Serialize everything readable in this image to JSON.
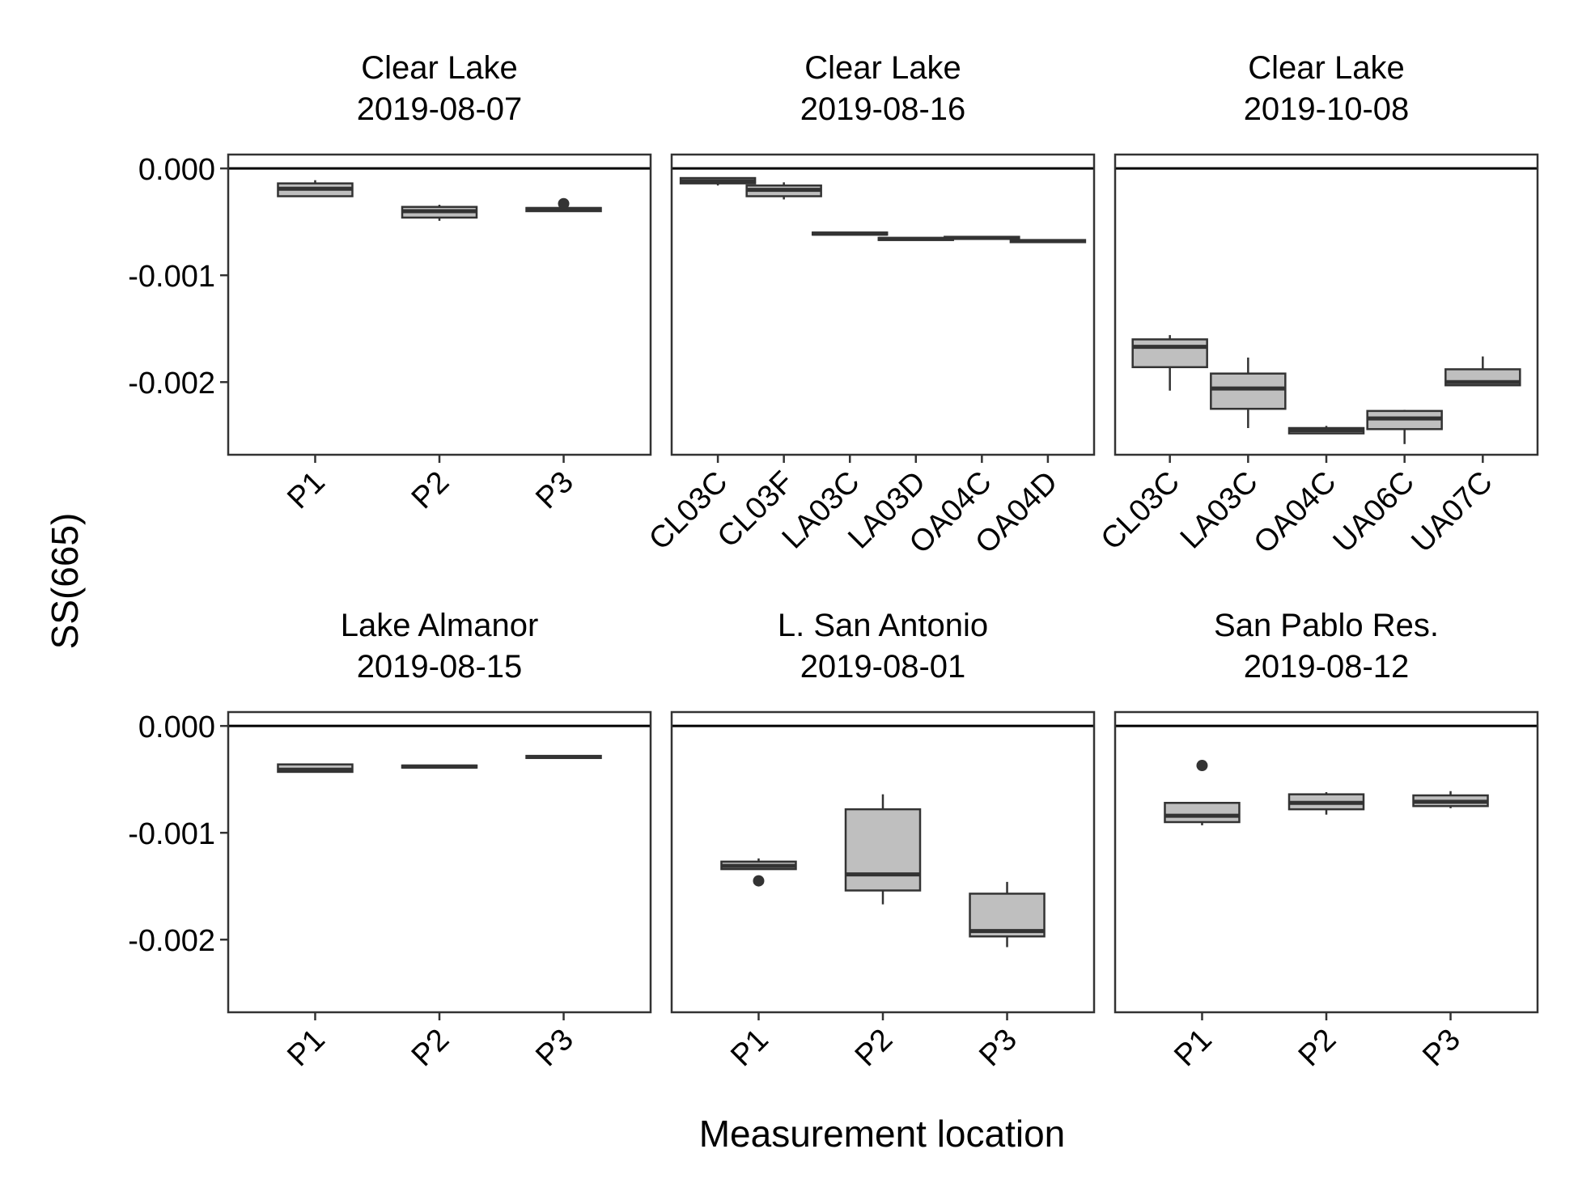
{
  "chart_data": {
    "type": "boxplot",
    "ylabel": "SS(665)",
    "xlabel": "Measurement location",
    "ylim": [
      -0.00268,
      0.00013
    ],
    "yticks": [
      0.0,
      -0.001,
      -0.002
    ],
    "ytick_labels": [
      "0.000",
      "-0.001",
      "-0.002"
    ],
    "reference_line_y": 0.0,
    "box_fill": "#bfbfbf",
    "box_stroke": "#333333",
    "grid": false,
    "panels": [
      {
        "title_line1": "Clear Lake",
        "title_line2": "2019-08-07",
        "categories": [
          "P1",
          "P2",
          "P3"
        ],
        "boxes": [
          {
            "q1": -0.00026,
            "median": -0.00019,
            "q3": -0.00014,
            "whisker_low": -0.00026,
            "whisker_high": -0.00011,
            "outliers": []
          },
          {
            "q1": -0.00046,
            "median": -0.0004,
            "q3": -0.00036,
            "whisker_low": -0.00049,
            "whisker_high": -0.00034,
            "outliers": []
          },
          {
            "q1": -0.0004,
            "median": -0.00038,
            "q3": -0.00037,
            "whisker_low": -0.0004,
            "whisker_high": -0.00037,
            "outliers": [
              -0.00033
            ]
          }
        ]
      },
      {
        "title_line1": "Clear Lake",
        "title_line2": "2019-08-16",
        "categories": [
          "CL03C",
          "CL03F",
          "LA03C",
          "LA03D",
          "OA04C",
          "OA04D"
        ],
        "boxes": [
          {
            "q1": -0.00014,
            "median": -0.00012,
            "q3": -9e-05,
            "whisker_low": -0.00016,
            "whisker_high": -9e-05,
            "outliers": []
          },
          {
            "q1": -0.00026,
            "median": -0.0002,
            "q3": -0.00016,
            "whisker_low": -0.00029,
            "whisker_high": -0.00013,
            "outliers": []
          },
          {
            "q1": -0.00062,
            "median": -0.00061,
            "q3": -0.0006,
            "whisker_low": -0.00062,
            "whisker_high": -0.0006,
            "outliers": []
          },
          {
            "q1": -0.00067,
            "median": -0.00066,
            "q3": -0.00065,
            "whisker_low": -0.00067,
            "whisker_high": -0.00065,
            "outliers": []
          },
          {
            "q1": -0.00066,
            "median": -0.00065,
            "q3": -0.00064,
            "whisker_low": -0.00066,
            "whisker_high": -0.00064,
            "outliers": []
          },
          {
            "q1": -0.00069,
            "median": -0.00068,
            "q3": -0.00067,
            "whisker_low": -0.00069,
            "whisker_high": -0.00067,
            "outliers": []
          }
        ]
      },
      {
        "title_line1": "Clear Lake",
        "title_line2": "2019-10-08",
        "categories": [
          "CL03C",
          "LA03C",
          "OA04C",
          "UA06C",
          "UA07C"
        ],
        "boxes": [
          {
            "q1": -0.00186,
            "median": -0.00167,
            "q3": -0.0016,
            "whisker_low": -0.00208,
            "whisker_high": -0.00156,
            "outliers": []
          },
          {
            "q1": -0.00225,
            "median": -0.00206,
            "q3": -0.00192,
            "whisker_low": -0.00243,
            "whisker_high": -0.00177,
            "outliers": []
          },
          {
            "q1": -0.00248,
            "median": -0.00245,
            "q3": -0.00243,
            "whisker_low": -0.00248,
            "whisker_high": -0.00241,
            "outliers": []
          },
          {
            "q1": -0.00244,
            "median": -0.00234,
            "q3": -0.00227,
            "whisker_low": -0.00258,
            "whisker_high": -0.00226,
            "outliers": []
          },
          {
            "q1": -0.00203,
            "median": -0.002,
            "q3": -0.00188,
            "whisker_low": -0.00203,
            "whisker_high": -0.00176,
            "outliers": []
          }
        ]
      },
      {
        "title_line1": "Lake Almanor",
        "title_line2": "2019-08-15",
        "categories": [
          "P1",
          "P2",
          "P3"
        ],
        "boxes": [
          {
            "q1": -0.00043,
            "median": -0.00041,
            "q3": -0.00036,
            "whisker_low": -0.00043,
            "whisker_high": -0.00036,
            "outliers": []
          },
          {
            "q1": -0.00039,
            "median": -0.00038,
            "q3": -0.00037,
            "whisker_low": -0.00039,
            "whisker_high": -0.00037,
            "outliers": []
          },
          {
            "q1": -0.0003,
            "median": -0.00029,
            "q3": -0.00028,
            "whisker_low": -0.0003,
            "whisker_high": -0.00028,
            "outliers": []
          }
        ]
      },
      {
        "title_line1": "L. San Antonio",
        "title_line2": "2019-08-01",
        "categories": [
          "P1",
          "P2",
          "P3"
        ],
        "boxes": [
          {
            "q1": -0.00134,
            "median": -0.00131,
            "q3": -0.00127,
            "whisker_low": -0.00134,
            "whisker_high": -0.00124,
            "outliers": [
              -0.00145
            ]
          },
          {
            "q1": -0.00154,
            "median": -0.00139,
            "q3": -0.00078,
            "whisker_low": -0.00167,
            "whisker_high": -0.00064,
            "outliers": []
          },
          {
            "q1": -0.00197,
            "median": -0.00192,
            "q3": -0.00157,
            "whisker_low": -0.00207,
            "whisker_high": -0.00146,
            "outliers": []
          }
        ]
      },
      {
        "title_line1": "San Pablo Res.",
        "title_line2": "2019-08-12",
        "categories": [
          "P1",
          "P2",
          "P3"
        ],
        "boxes": [
          {
            "q1": -0.0009,
            "median": -0.00084,
            "q3": -0.00072,
            "whisker_low": -0.00093,
            "whisker_high": -0.00072,
            "outliers": [
              -0.00037
            ]
          },
          {
            "q1": -0.00078,
            "median": -0.00072,
            "q3": -0.00064,
            "whisker_low": -0.00083,
            "whisker_high": -0.00062,
            "outliers": []
          },
          {
            "q1": -0.00075,
            "median": -0.00071,
            "q3": -0.00065,
            "whisker_low": -0.00077,
            "whisker_high": -0.00061,
            "outliers": []
          }
        ]
      }
    ]
  }
}
